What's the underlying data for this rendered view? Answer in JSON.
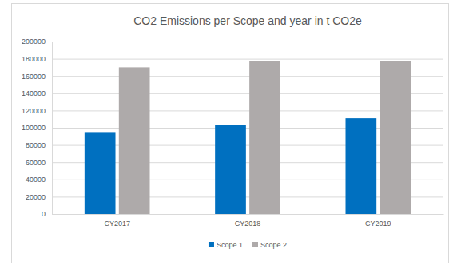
{
  "chart_data": {
    "type": "bar",
    "title": "CO2 Emissions per Scope and year in t CO2e",
    "categories": [
      "CY2017",
      "CY2018",
      "CY2019"
    ],
    "series": [
      {
        "name": "Scope 1",
        "color": "#0070c0",
        "values": [
          95000,
          103500,
          111000
        ]
      },
      {
        "name": "Scope 2",
        "color": "#aeaaaa",
        "values": [
          170000,
          177500,
          177500
        ]
      }
    ],
    "ylim": [
      0,
      200000
    ],
    "yticks": [
      0,
      20000,
      40000,
      60000,
      80000,
      100000,
      120000,
      140000,
      160000,
      180000,
      200000
    ],
    "grid": true,
    "legend": "bottom"
  }
}
